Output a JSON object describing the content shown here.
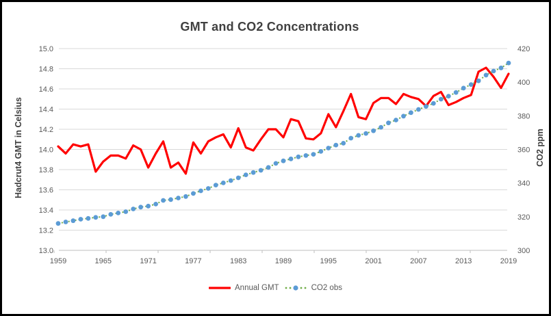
{
  "window": {
    "border_color": "#000000",
    "background": "#ffffff"
  },
  "chart_data": {
    "type": "line",
    "title": "GMT and CO2 Concentrations",
    "grid": "horizontal",
    "legend_position": "bottom",
    "x_tick_labels": [
      "1959",
      "1965",
      "1971",
      "1977",
      "1983",
      "1989",
      "1995",
      "2001",
      "2007",
      "2013",
      "2019"
    ],
    "years": [
      1959,
      1960,
      1961,
      1962,
      1963,
      1964,
      1965,
      1966,
      1967,
      1968,
      1969,
      1970,
      1971,
      1972,
      1973,
      1974,
      1975,
      1976,
      1977,
      1978,
      1979,
      1980,
      1981,
      1982,
      1983,
      1984,
      1985,
      1986,
      1987,
      1988,
      1989,
      1990,
      1991,
      1992,
      1993,
      1994,
      1995,
      1996,
      1997,
      1998,
      1999,
      2000,
      2001,
      2002,
      2003,
      2004,
      2005,
      2006,
      2007,
      2008,
      2009,
      2010,
      2011,
      2012,
      2013,
      2014,
      2015,
      2016,
      2017,
      2018,
      2019
    ],
    "left_axis": {
      "label": "Hadcrut4 GMT in Celsius",
      "min": 13.0,
      "max": 15.0,
      "tick_labels": [
        "15.0",
        "14.8",
        "14.6",
        "14.4",
        "14.2",
        "14.0",
        "13.8",
        "13.6",
        "13.4",
        "13.2",
        "13.0"
      ]
    },
    "right_axis": {
      "label": "CO2 ppm",
      "min": 300,
      "max": 420,
      "tick_labels": [
        "420",
        "400",
        "380",
        "360",
        "340",
        "320",
        "300"
      ]
    },
    "series": [
      {
        "name": "Annual GMT",
        "axis": "left",
        "style": "solid-line",
        "values": [
          14.03,
          13.96,
          14.05,
          14.03,
          14.05,
          13.78,
          13.88,
          13.94,
          13.94,
          13.91,
          14.04,
          14.0,
          13.82,
          13.96,
          14.08,
          13.82,
          13.87,
          13.76,
          14.07,
          13.96,
          14.08,
          14.12,
          14.15,
          14.02,
          14.21,
          14.02,
          13.99,
          14.1,
          14.2,
          14.2,
          14.12,
          14.3,
          14.28,
          14.11,
          14.1,
          14.16,
          14.35,
          14.22,
          14.38,
          14.55,
          14.32,
          14.3,
          14.46,
          14.51,
          14.51,
          14.45,
          14.55,
          14.52,
          14.5,
          14.43,
          14.53,
          14.57,
          14.44,
          14.47,
          14.51,
          14.54,
          14.77,
          14.81,
          14.72,
          14.61,
          14.75
        ]
      },
      {
        "name": "CO2 obs",
        "axis": "right",
        "style": "dotted-line-with-round-markers",
        "values": [
          316.0,
          316.9,
          317.6,
          318.5,
          319.0,
          319.6,
          320.0,
          321.4,
          322.2,
          323.0,
          324.6,
          325.7,
          326.3,
          327.5,
          329.7,
          330.2,
          331.1,
          332.0,
          333.8,
          335.4,
          336.8,
          338.8,
          340.1,
          341.5,
          343.1,
          344.9,
          346.3,
          347.6,
          349.3,
          351.7,
          353.2,
          354.4,
          355.6,
          356.4,
          357.1,
          358.8,
          360.8,
          362.6,
          363.7,
          366.7,
          368.4,
          369.5,
          371.1,
          373.2,
          375.8,
          377.5,
          379.8,
          381.9,
          383.8,
          385.6,
          387.4,
          389.9,
          391.7,
          393.9,
          396.5,
          398.6,
          400.8,
          404.2,
          406.6,
          408.5,
          411.4
        ]
      }
    ],
    "colors": {
      "gmt_line": "#FF0000",
      "co2_marker": "#5B9BD5",
      "co2_line": "#70AD47",
      "gridline": "#D9D9D9",
      "axis_line": "#BFBFBF",
      "tick_text": "#595959",
      "title_text": "#404040",
      "axis_title_text": "#404040",
      "legend_text": "#595959"
    }
  }
}
